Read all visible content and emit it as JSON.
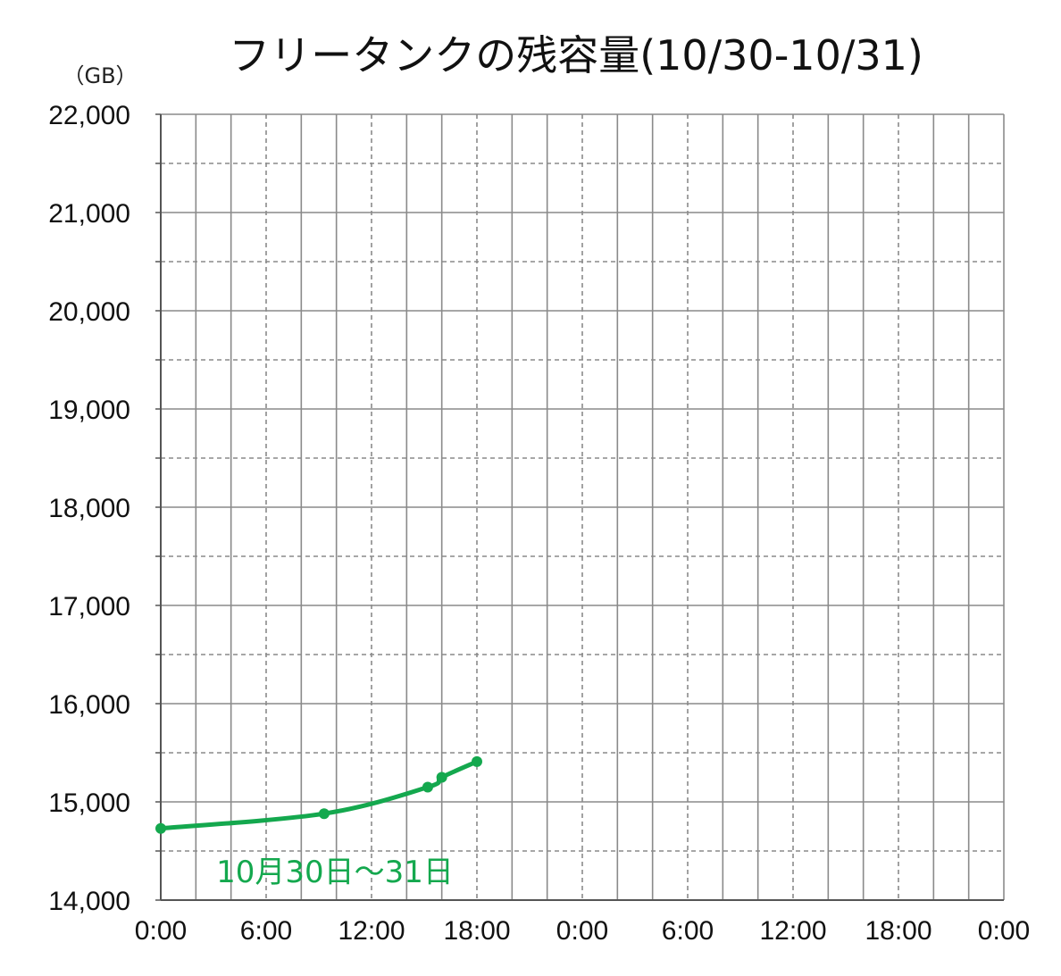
{
  "chart_data": {
    "type": "line",
    "title": "フリータンクの残容量(10/30-10/31)",
    "ylabel": "（GB）",
    "xlabel": "",
    "ylim": [
      14000,
      22000
    ],
    "xlim_hours": [
      0,
      48
    ],
    "x_tick_hours": [
      0,
      6,
      12,
      18,
      24,
      30,
      36,
      42,
      48
    ],
    "x_tick_labels": [
      "0:00",
      "6:00",
      "12:00",
      "18:00",
      "0:00",
      "6:00",
      "12:00",
      "18:00",
      "0:00"
    ],
    "y_ticks": [
      14000,
      15000,
      16000,
      17000,
      18000,
      19000,
      20000,
      21000,
      22000
    ],
    "y_tick_labels": [
      "14,000",
      "15,000",
      "16,000",
      "17,000",
      "18,000",
      "19,000",
      "20,000",
      "21,000",
      "22,000"
    ],
    "grid": true,
    "series": [
      {
        "color": "#14a84e",
        "points": [
          {
            "x": 0,
            "y": 14730
          },
          {
            "x": 9.3,
            "y": 14880
          },
          {
            "x": 15.2,
            "y": 15150
          },
          {
            "x": 16,
            "y": 15250
          },
          {
            "x": 18,
            "y": 15410
          }
        ]
      }
    ],
    "annotation": {
      "text": "10月30日～31日",
      "color": "#14a84e"
    }
  }
}
